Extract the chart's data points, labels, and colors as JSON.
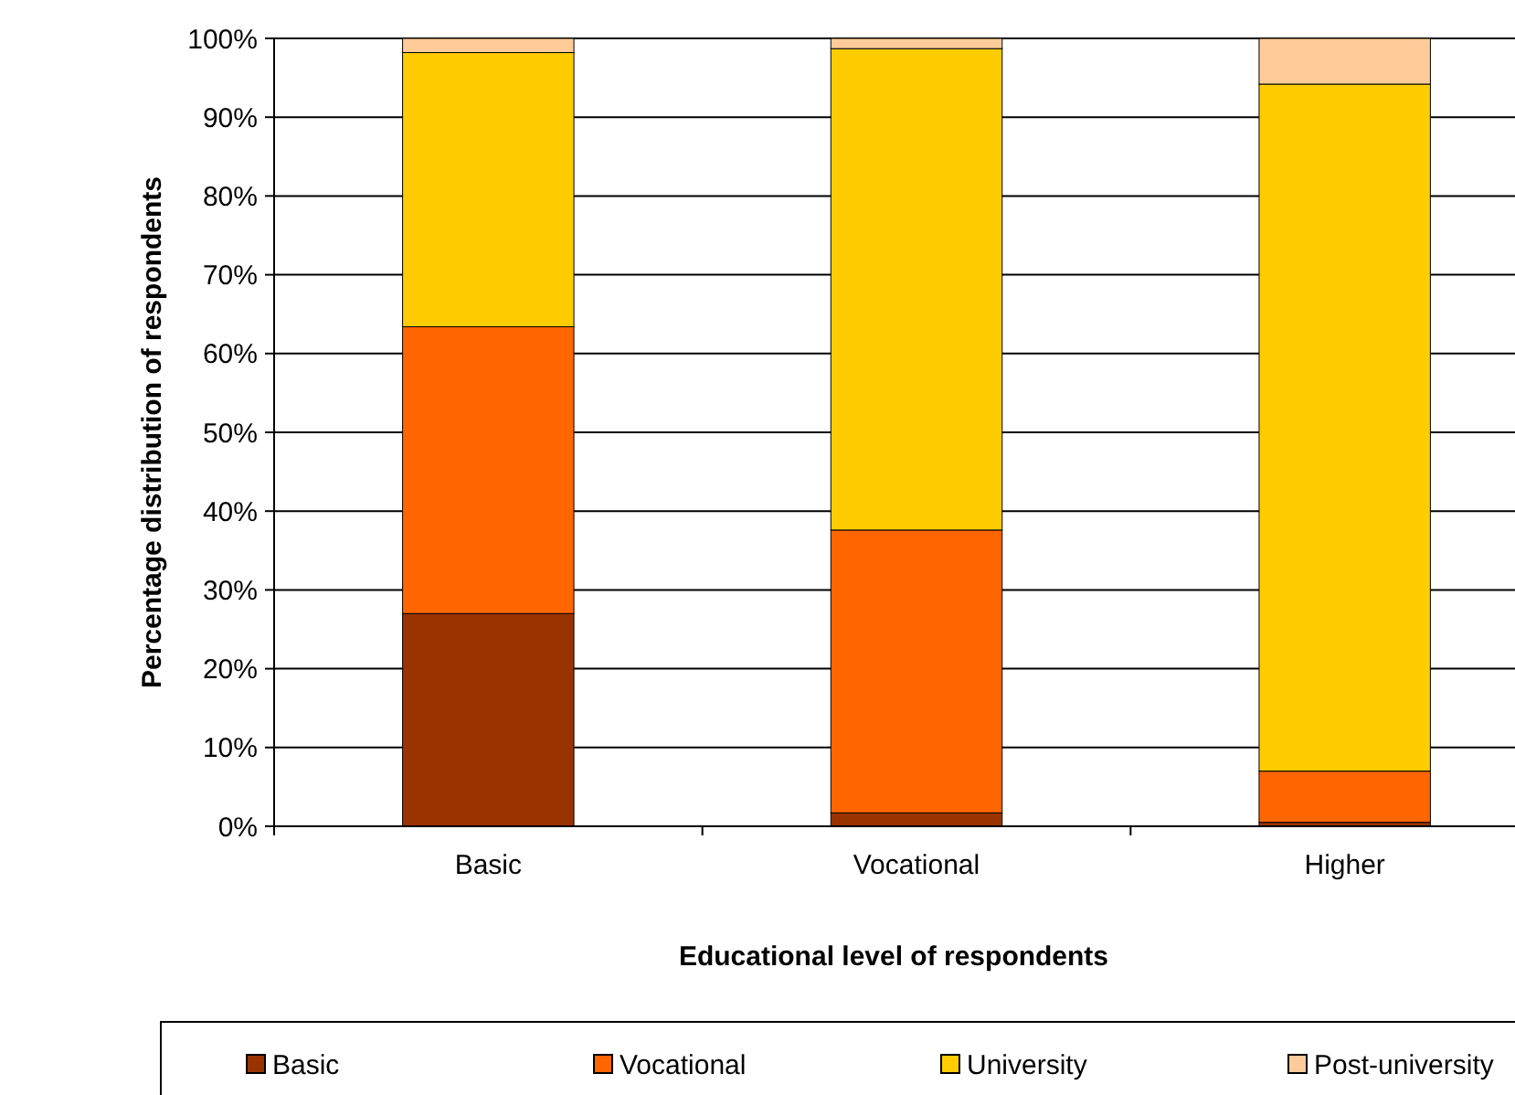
{
  "chart_data": {
    "type": "bar",
    "stacked": true,
    "xlabel": "Educational level of respondents",
    "ylabel": "Percentage distribution of respondents",
    "categories": [
      "Basic",
      "Vocational",
      "Higher"
    ],
    "series": [
      {
        "name": "Basic",
        "color": "#993300",
        "values": [
          27,
          1.7,
          0.5
        ]
      },
      {
        "name": "Vocational",
        "color": "#ff6600",
        "values": [
          36.4,
          35.9,
          6.5
        ]
      },
      {
        "name": "University",
        "color": "#ffcc00",
        "values": [
          34.8,
          61.1,
          87.2
        ]
      },
      {
        "name": "Post-university",
        "color": "#ffcc99",
        "values": [
          1.8,
          1.3,
          5.8
        ]
      }
    ],
    "ylim": [
      0,
      100
    ],
    "yticks": [
      {
        "value": 0,
        "label": "0%"
      },
      {
        "value": 10,
        "label": "10%"
      },
      {
        "value": 20,
        "label": "20%"
      },
      {
        "value": 30,
        "label": "30%"
      },
      {
        "value": 40,
        "label": "40%"
      },
      {
        "value": 50,
        "label": "50%"
      },
      {
        "value": 60,
        "label": "60%"
      },
      {
        "value": 70,
        "label": "70%"
      },
      {
        "value": 80,
        "label": "80%"
      },
      {
        "value": 90,
        "label": "90%"
      },
      {
        "value": 100,
        "label": "100%"
      }
    ],
    "grid": "y",
    "legend": "bottom"
  }
}
